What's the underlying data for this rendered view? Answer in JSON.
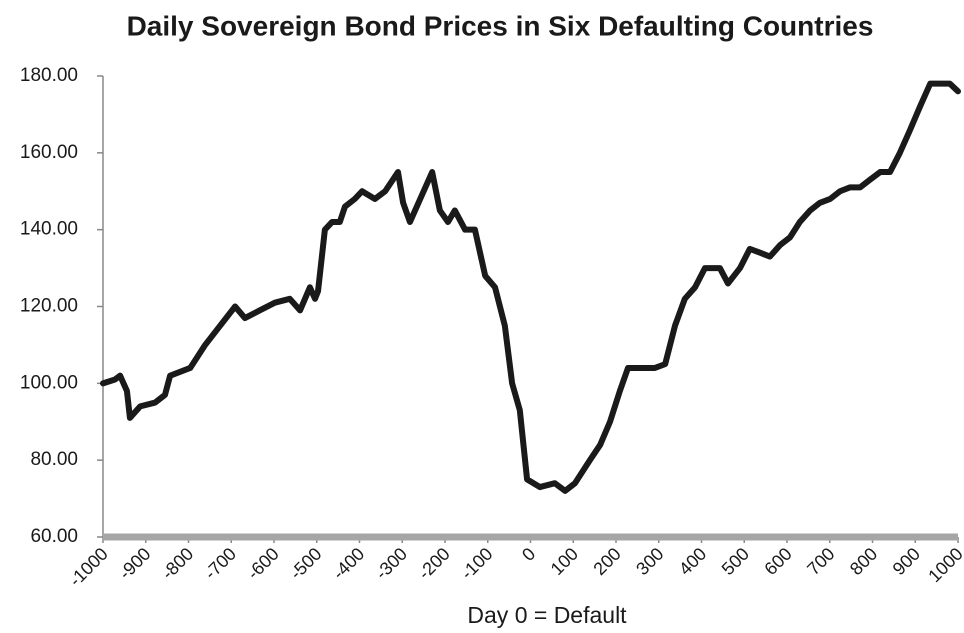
{
  "chart_data": {
    "type": "line",
    "title": "Daily Sovereign Bond Prices in Six Defaulting Countries",
    "x_label": "Day 0 = Default",
    "x": [
      -1000,
      -972,
      -960,
      -944,
      -937,
      -913,
      -878,
      -855,
      -843,
      -796,
      -761,
      -726,
      -691,
      -668,
      -633,
      -598,
      -563,
      -539,
      -516,
      -504,
      -497,
      -481,
      -464,
      -446,
      -434,
      -411,
      -394,
      -364,
      -340,
      -310,
      -298,
      -282,
      -258,
      -230,
      -212,
      -193,
      -177,
      -153,
      -130,
      -106,
      -83,
      -60,
      -43,
      -25,
      -8,
      22,
      57,
      81,
      104,
      139,
      163,
      186,
      209,
      228,
      256,
      291,
      315,
      338,
      361,
      385,
      408,
      443,
      462,
      490,
      513,
      537,
      560,
      584,
      607,
      630,
      654,
      677,
      701,
      724,
      747,
      771,
      794,
      818,
      841,
      864,
      888,
      911,
      935,
      958,
      981,
      1000
    ],
    "series": [
      {
        "color": "#1a1a1a",
        "values": [
          100,
          101,
          102,
          98,
          91,
          94,
          95,
          97,
          102,
          104,
          110,
          115,
          120,
          117,
          119,
          121,
          122,
          119,
          125,
          122,
          124,
          140,
          142,
          142,
          146,
          148,
          150,
          148,
          150,
          155,
          147,
          142,
          148,
          155,
          145,
          142,
          145,
          140,
          140,
          128,
          125,
          115,
          100,
          93,
          75,
          73,
          74,
          72,
          74,
          80,
          84,
          90,
          98,
          104,
          104,
          104,
          105,
          115,
          122,
          125,
          130,
          130,
          126,
          130,
          135,
          134,
          133,
          136,
          138,
          142,
          145,
          147,
          148,
          150,
          151,
          151,
          153,
          155,
          155,
          160,
          166,
          172,
          178,
          178,
          178,
          176
        ]
      }
    ],
    "xlim": [
      -1000,
      1000
    ],
    "xticks": [
      -1000,
      -900,
      -800,
      -700,
      -600,
      -500,
      -400,
      -300,
      -200,
      -100,
      0,
      100,
      200,
      300,
      400,
      500,
      600,
      700,
      800,
      900,
      1000
    ],
    "ylim": [
      60,
      180
    ],
    "yticks": [
      {
        "value": 60,
        "label": "60.00"
      },
      {
        "value": 80,
        "label": "80.00"
      },
      {
        "value": 100,
        "label": "100.00"
      },
      {
        "value": 120,
        "label": "120.00"
      },
      {
        "value": 140,
        "label": "140.00"
      },
      {
        "value": 160,
        "label": "160.00"
      },
      {
        "value": 180,
        "label": "180.00"
      }
    ]
  }
}
